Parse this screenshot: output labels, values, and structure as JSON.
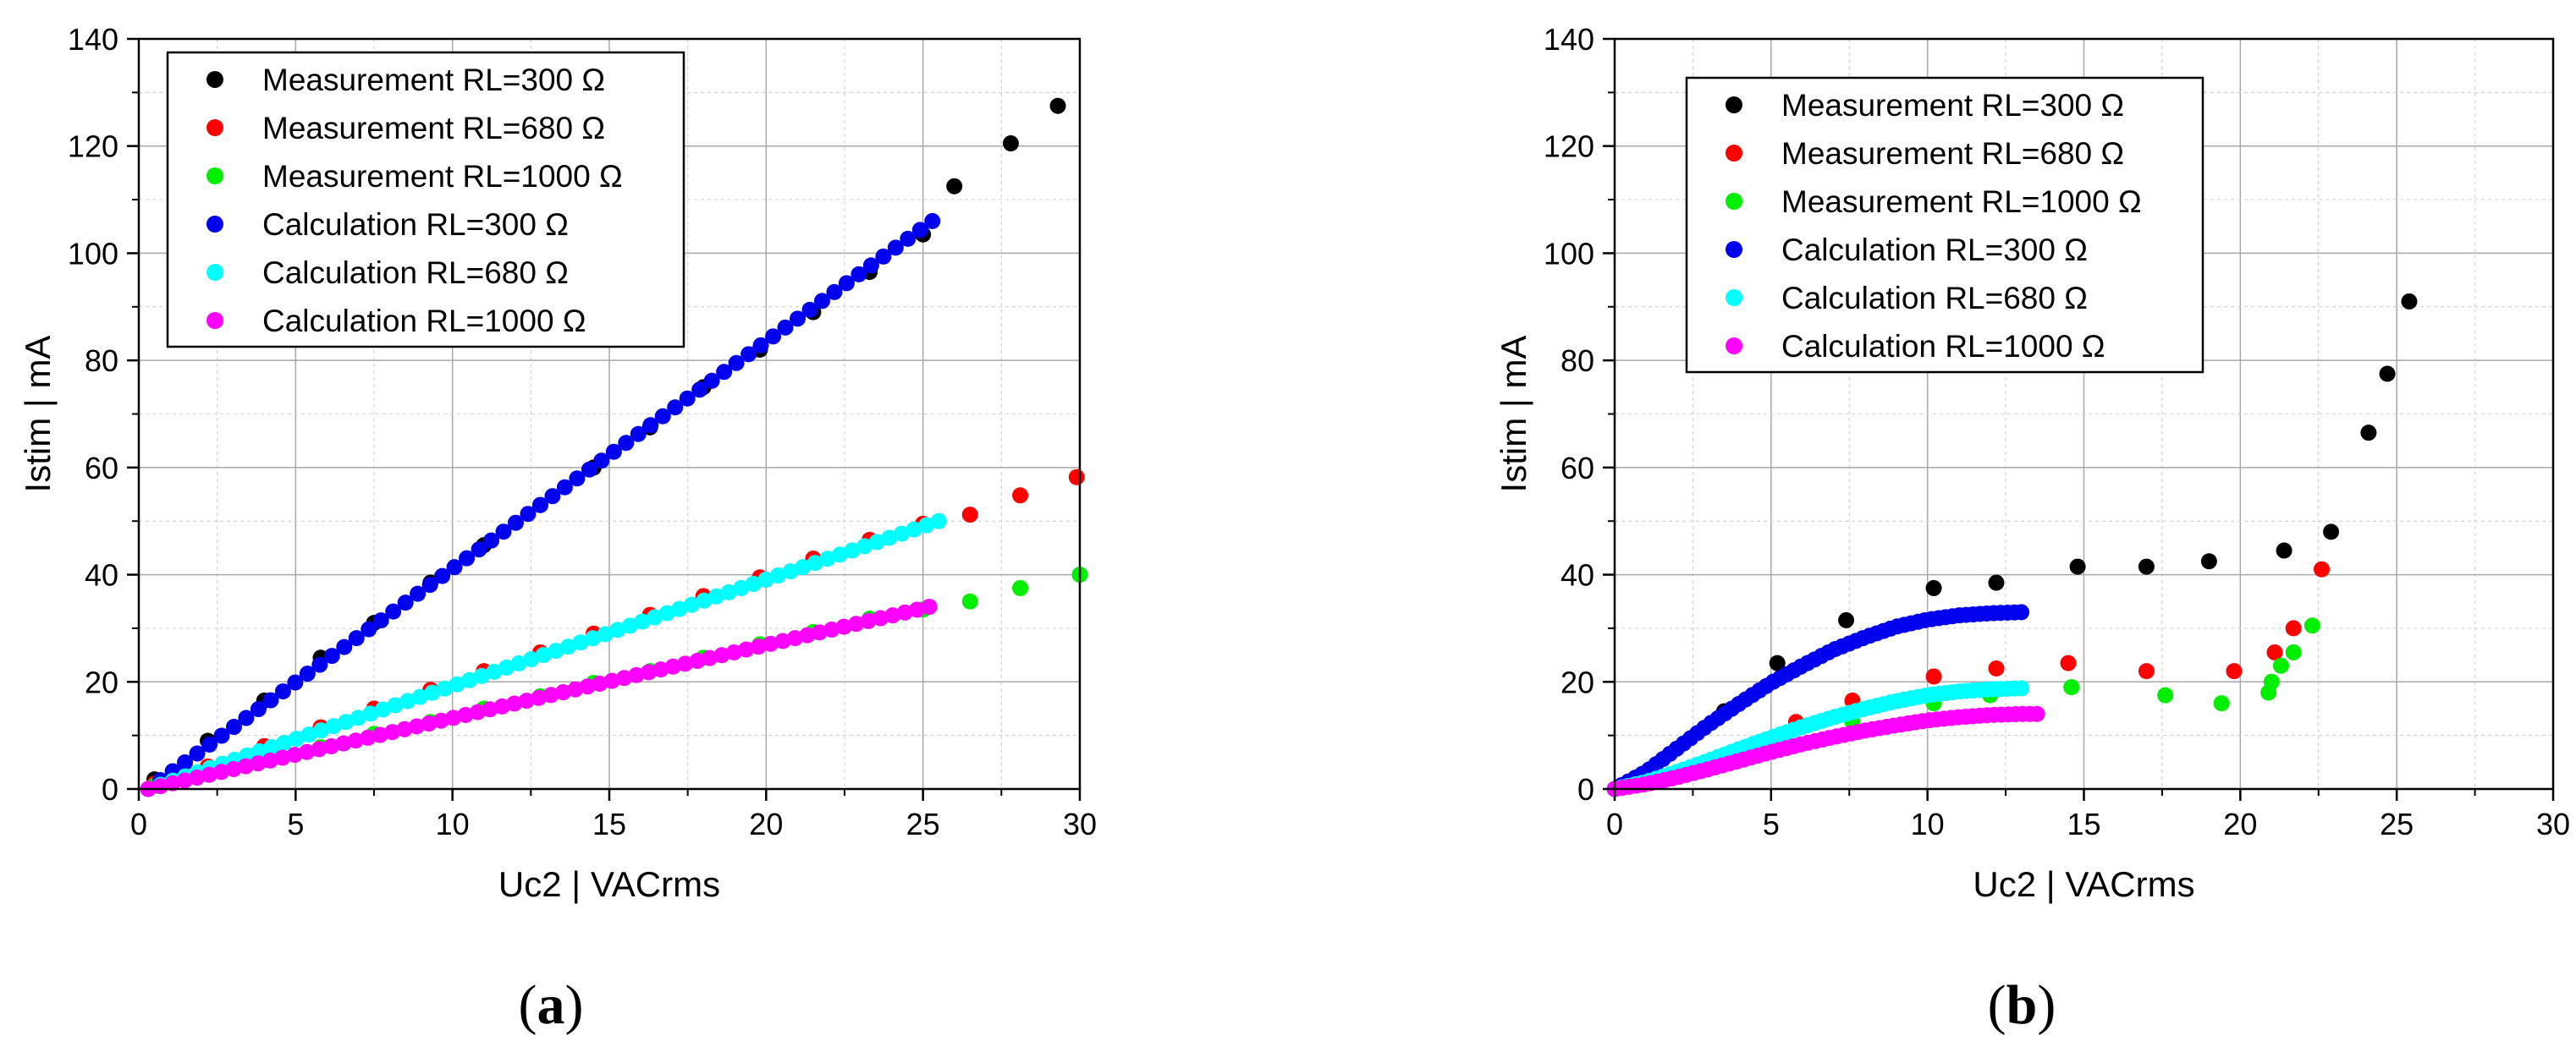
{
  "colors": {
    "meas300": "#000000",
    "meas680": "#ff0000",
    "meas1000": "#00ee00",
    "calc300": "#0000ee",
    "calc680": "#00ffff",
    "calc1000": "#ff00ff"
  },
  "panel_labels": {
    "open": "(",
    "a": "a",
    "b": "b",
    "close": ")"
  },
  "chart_data": [
    {
      "id": "a",
      "type": "scatter",
      "panel_label": "a",
      "xlabel": "Uc2 | VACrms",
      "ylabel": "Istim | mA",
      "xlim": [
        0,
        30
      ],
      "ylim": [
        0,
        140
      ],
      "xticks": [
        "0",
        "5",
        "10",
        "15",
        "20",
        "25",
        "30"
      ],
      "yticks": [
        "0",
        "20",
        "40",
        "60",
        "80",
        "100",
        "120",
        "140"
      ],
      "grid": true,
      "legend": "top-left",
      "series": [
        {
          "name": "Measurement RL=300 Ω",
          "color_key": "meas300",
          "x": [
            0.5,
            2.2,
            4.0,
            5.8,
            7.5,
            9.3,
            11.0,
            12.8,
            14.5,
            16.3,
            18.0,
            19.8,
            21.5,
            23.3,
            25.0,
            26.0,
            27.8,
            29.3
          ],
          "y": [
            1.8,
            9.0,
            16.5,
            24.5,
            31.0,
            38.5,
            45.5,
            53.0,
            60.0,
            67.5,
            75.0,
            82.0,
            89.0,
            96.5,
            103.5,
            112.5,
            120.5,
            127.5
          ]
        },
        {
          "name": "Measurement RL=680 Ω",
          "color_key": "meas680",
          "x": [
            0.5,
            2.2,
            4.0,
            5.8,
            7.5,
            9.3,
            11.0,
            12.8,
            14.5,
            16.3,
            18.0,
            19.8,
            21.5,
            23.3,
            25.0,
            26.5,
            28.1,
            29.9
          ],
          "y": [
            1.0,
            4.2,
            8.0,
            11.5,
            15.0,
            18.5,
            22.0,
            25.5,
            29.0,
            32.5,
            36.0,
            39.5,
            43.0,
            46.5,
            49.5,
            51.2,
            54.8,
            58.2
          ]
        },
        {
          "name": "Measurement RL=1000 Ω",
          "color_key": "meas1000",
          "x": [
            0.5,
            2.2,
            4.0,
            5.8,
            7.5,
            9.3,
            11.0,
            12.8,
            14.5,
            16.3,
            18.0,
            19.8,
            21.5,
            23.3,
            25.0,
            26.5,
            28.1,
            30.0
          ],
          "y": [
            0.6,
            3.0,
            5.4,
            7.8,
            10.3,
            12.5,
            15.0,
            17.3,
            19.8,
            22.0,
            24.5,
            27.0,
            29.3,
            31.8,
            33.5,
            35.0,
            37.5,
            40.0
          ]
        },
        {
          "name": "Calculation RL=300 Ω",
          "color_key": "calc300",
          "x": [
            0.3,
            25.3
          ],
          "y": [
            0.0,
            106.0
          ],
          "n": 65
        },
        {
          "name": "Calculation RL=680 Ω",
          "color_key": "calc680",
          "x": [
            0.3,
            25.5
          ],
          "y": [
            0.0,
            50.0
          ],
          "n": 65
        },
        {
          "name": "Calculation RL=1000 Ω",
          "color_key": "calc1000",
          "x": [
            0.3,
            25.2
          ],
          "y": [
            0.0,
            34.0
          ],
          "n": 65
        }
      ]
    },
    {
      "id": "b",
      "type": "scatter",
      "panel_label": "b",
      "xlabel": "Uc2 | VACrms",
      "ylabel": "Istim | mA",
      "xlim": [
        0,
        30
      ],
      "ylim": [
        0,
        140
      ],
      "xticks": [
        "0",
        "5",
        "10",
        "15",
        "20",
        "25",
        "30"
      ],
      "yticks": [
        "0",
        "20",
        "40",
        "60",
        "80",
        "100",
        "120",
        "140"
      ],
      "grid": true,
      "legend": "top-left",
      "series": [
        {
          "name": "Measurement RL=300 Ω",
          "color_key": "meas300",
          "x": [
            3.5,
            5.2,
            7.4,
            10.2,
            12.2,
            14.8,
            17.0,
            19.0,
            21.4,
            22.9,
            24.1,
            24.7,
            25.4
          ],
          "y": [
            14.5,
            23.5,
            31.5,
            37.5,
            38.5,
            41.5,
            41.5,
            42.5,
            44.5,
            48.0,
            66.5,
            77.5,
            91.0
          ]
        },
        {
          "name": "Measurement RL=680 Ω",
          "color_key": "meas680",
          "x": [
            5.8,
            7.6,
            10.2,
            12.2,
            14.5,
            17.0,
            19.8,
            21.1,
            21.7,
            22.6
          ],
          "y": [
            12.5,
            16.5,
            21.0,
            22.5,
            23.5,
            22.0,
            22.0,
            25.5,
            30.0,
            41.0
          ]
        },
        {
          "name": "Measurement RL=1000 Ω",
          "color_key": "meas1000",
          "x": [
            7.6,
            10.2,
            12.0,
            14.6,
            17.6,
            19.4,
            20.9,
            21.0,
            21.3,
            21.7,
            22.3
          ],
          "y": [
            12.5,
            16.0,
            17.5,
            19.0,
            17.5,
            16.0,
            18.0,
            20.0,
            23.0,
            25.5,
            30.5
          ]
        },
        {
          "name": "Calculation RL=300 Ω",
          "color_key": "calc300",
          "x": [
            0.0,
            1.0,
            2.0,
            3.0,
            4.0,
            5.0,
            6.0,
            7.0,
            8.0,
            9.0,
            10.0,
            11.0,
            12.0,
            13.0
          ],
          "y": [
            0.0,
            3.2,
            7.6,
            12.0,
            16.0,
            19.8,
            23.0,
            26.0,
            28.3,
            30.3,
            31.6,
            32.4,
            32.8,
            33.0
          ],
          "n": 60
        },
        {
          "name": "Calculation RL=680 Ω",
          "color_key": "calc680",
          "x": [
            0.0,
            1.0,
            2.0,
            3.0,
            4.0,
            5.0,
            6.0,
            7.0,
            8.0,
            9.0,
            10.0,
            11.0,
            12.0,
            13.0
          ],
          "y": [
            0.0,
            1.3,
            3.2,
            5.3,
            7.5,
            9.6,
            11.6,
            13.4,
            15.0,
            16.4,
            17.5,
            18.2,
            18.6,
            18.8
          ],
          "n": 60
        },
        {
          "name": "Calculation RL=1000 Ω",
          "color_key": "calc1000",
          "x": [
            0.0,
            1.0,
            2.0,
            3.0,
            4.0,
            5.0,
            6.0,
            7.0,
            8.0,
            9.0,
            10.0,
            11.0,
            12.0,
            13.0,
            13.5
          ],
          "y": [
            0.0,
            0.9,
            2.2,
            3.7,
            5.3,
            6.9,
            8.4,
            9.7,
            10.9,
            11.9,
            12.8,
            13.4,
            13.8,
            14.0,
            14.0
          ],
          "n": 60
        }
      ]
    }
  ]
}
